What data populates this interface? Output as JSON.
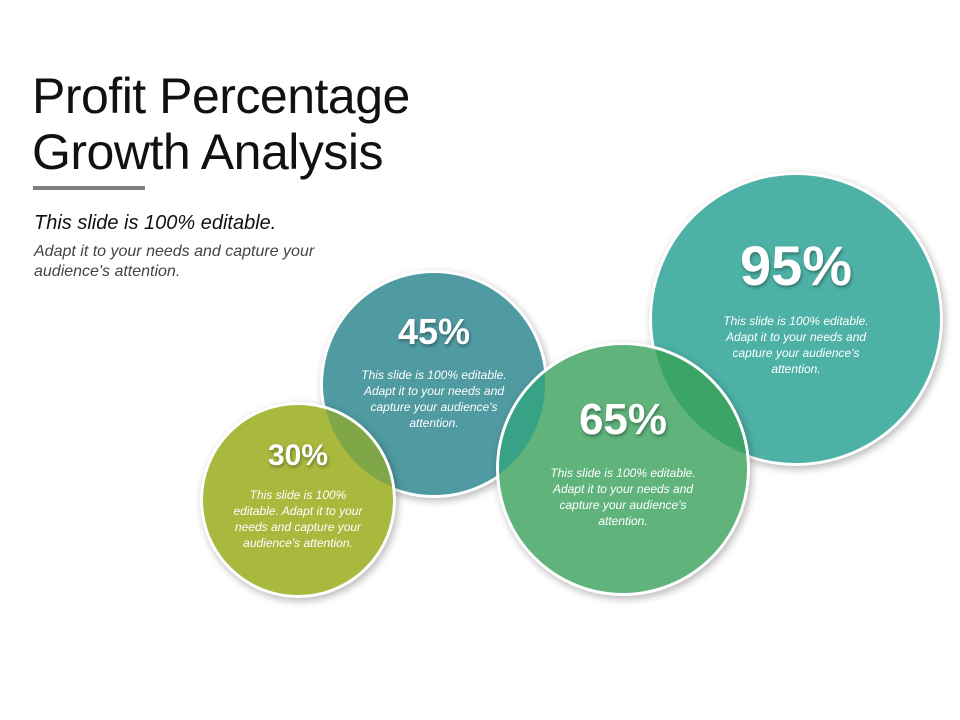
{
  "slide": {
    "title_line1": "Profit Percentage",
    "title_line2": "Growth Analysis",
    "subtitle": "This slide is 100% editable.",
    "description": "Adapt it to your needs and capture your audience's attention."
  },
  "colors": {
    "bubble_30": "#a8b93e",
    "bubble_45": "#509aa2",
    "bubble_65": "#5fb37b",
    "bubble_95": "#4db1a6",
    "overlap_30_45": "#7fa647",
    "overlap_45_65": "#37a285",
    "overlap_65_95": "#3aa566"
  },
  "bubbles": [
    {
      "id": "30",
      "percent": "30%",
      "text": "This slide is 100% editable. Adapt it to your needs and capture your audience's attention."
    },
    {
      "id": "45",
      "percent": "45%",
      "text": "This slide is 100% editable. Adapt it to your needs and capture your audience's attention."
    },
    {
      "id": "65",
      "percent": "65%",
      "text": "This slide is 100% editable. Adapt it to your needs and capture your audience's attention."
    },
    {
      "id": "95",
      "percent": "95%",
      "text": "This slide is 100% editable. Adapt it to your needs and capture your audience's attention."
    }
  ]
}
